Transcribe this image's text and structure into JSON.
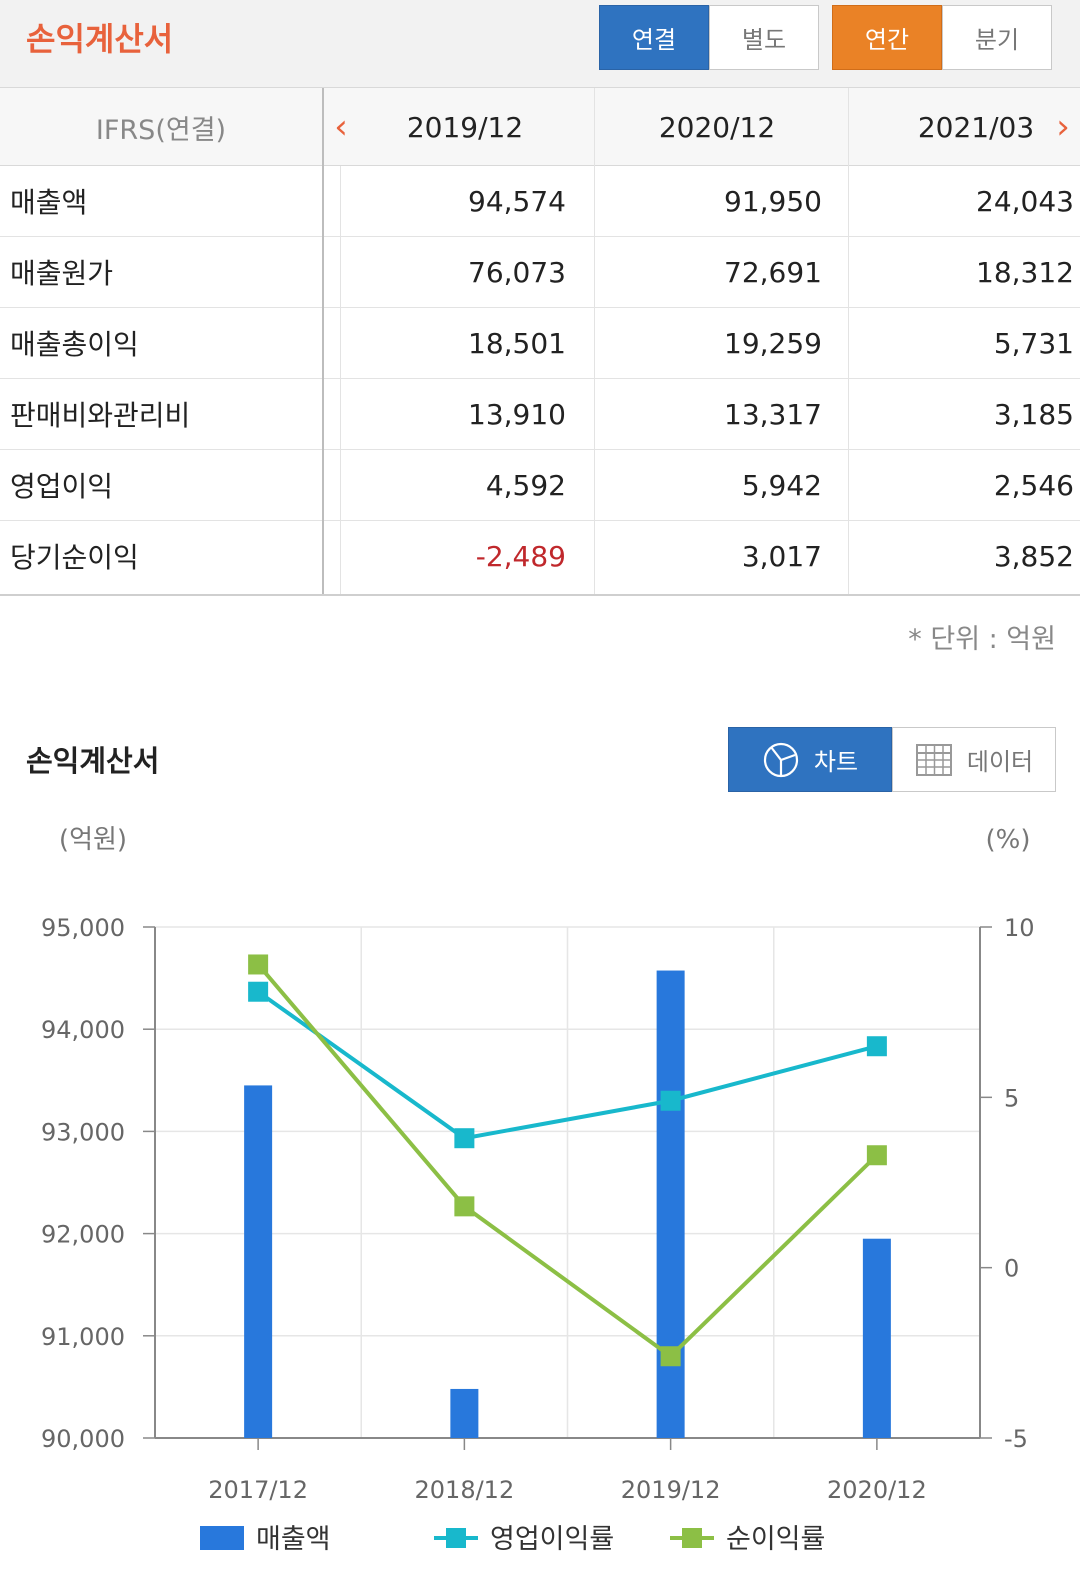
{
  "header": {
    "title": "손익계산서",
    "consolidation": [
      "연결",
      "별도"
    ],
    "period": [
      "연간",
      "분기"
    ]
  },
  "table": {
    "corner_label": "IFRS(연결)",
    "columns": [
      "2019/12",
      "2020/12",
      "2021/03"
    ],
    "rows": [
      {
        "label": "매출액",
        "values": [
          "94,574",
          "91,950",
          "24,043"
        ]
      },
      {
        "label": "매출원가",
        "values": [
          "76,073",
          "72,691",
          "18,312"
        ]
      },
      {
        "label": "매출총이익",
        "values": [
          "18,501",
          "19,259",
          "5,731"
        ]
      },
      {
        "label": "판매비와관리비",
        "values": [
          "13,910",
          "13,317",
          "3,185"
        ]
      },
      {
        "label": "영업이익",
        "values": [
          "4,592",
          "5,942",
          "2,546"
        ]
      },
      {
        "label": "당기순이익",
        "values": [
          "-2,489",
          "3,017",
          "3,852"
        ]
      }
    ],
    "unit_note": "* 단위 : 억원"
  },
  "chart_section": {
    "title": "손익계산서",
    "chart_button": "차트",
    "data_button": "데이터"
  },
  "colors": {
    "accent_orange": "#e8623c",
    "button_blue": "#2f73c0",
    "button_orange": "#ea8226",
    "bar": "#2878dc",
    "operating_margin": "#18b8cc",
    "net_margin": "#8cbf45",
    "negative": "#c0282c"
  },
  "chart_data": {
    "type": "bar",
    "categories": [
      "2017/12",
      "2018/12",
      "2019/12",
      "2020/12"
    ],
    "left_unit": "(억원)",
    "right_unit": "(%)",
    "ylim_left": [
      90000,
      95000
    ],
    "yticks_left": [
      "95,000",
      "94,000",
      "93,000",
      "92,000",
      "91,000",
      "90,000"
    ],
    "ylim_right": [
      -5,
      10
    ],
    "yticks_right": [
      "10",
      "5",
      "0",
      "-5"
    ],
    "grid": true,
    "legend_position": "bottom",
    "series": [
      {
        "name": "매출액",
        "type": "bar",
        "axis": "left",
        "values": [
          93450,
          90480,
          94574,
          91950
        ]
      },
      {
        "name": "영업이익률",
        "type": "line",
        "axis": "right",
        "values": [
          8.1,
          3.8,
          4.9,
          6.5
        ]
      },
      {
        "name": "순이익률",
        "type": "line",
        "axis": "right",
        "values": [
          8.9,
          1.8,
          -2.6,
          3.3
        ]
      }
    ]
  }
}
